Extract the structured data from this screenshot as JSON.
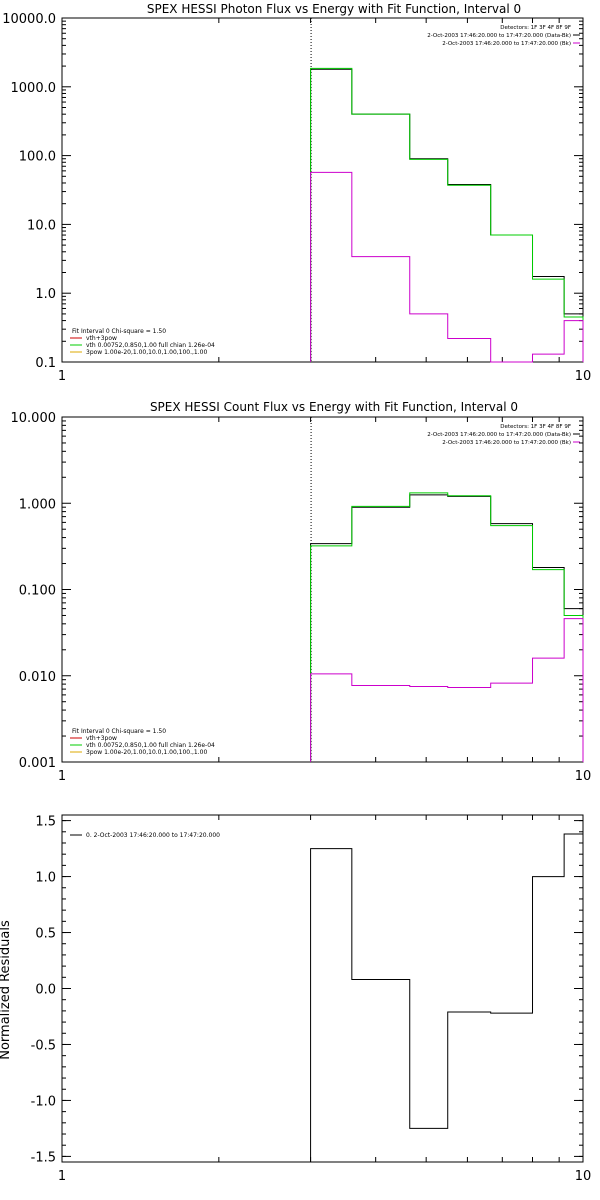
{
  "chart_data": [
    {
      "type": "line",
      "title": "SPEX HESSI Photon Flux vs Energy with Fit Function, Interval 0",
      "xlabel": "",
      "ylabel": "",
      "x_scale": "log",
      "y_scale": "log",
      "xlim": [
        1,
        10
      ],
      "ylim": [
        0.1,
        10000
      ],
      "x_ticks": [
        {
          "value": 1,
          "label": "1"
        },
        {
          "value": 10,
          "label": "10"
        }
      ],
      "y_ticks": [
        {
          "value": 0.1,
          "label": "0.1"
        },
        {
          "value": 1,
          "label": "1.0"
        },
        {
          "value": 10,
          "label": "10.0"
        },
        {
          "value": 100,
          "label": "100.0"
        },
        {
          "value": 1000,
          "label": "1000.0"
        },
        {
          "value": 10000,
          "label": "10000.0"
        }
      ],
      "vline_x": 3,
      "edges": [
        3,
        3.6,
        4.65,
        5.5,
        6.65,
        8.0,
        9.2,
        10.0
      ],
      "series": [
        {
          "color": "#000000",
          "values": [
            1800,
            400,
            90,
            38,
            7,
            1.75,
            0.5
          ]
        },
        {
          "color": "#00cc00",
          "values": [
            1850,
            400,
            88,
            37,
            7,
            1.6,
            0.45
          ]
        },
        {
          "color": "#cc00cc",
          "values": [
            57,
            3.4,
            0.5,
            0.22,
            0.09,
            0.13,
            0.4
          ]
        }
      ],
      "legend_right": [
        {
          "text": "Detectors: 1F 3F 4F 8F 9F",
          "color": ""
        },
        {
          "text": "2-Oct-2003 17:46:20.000 to 17:47:20.000 (Data-Bk)",
          "color": "#000000"
        },
        {
          "text": "2-Oct-2003 17:46:20.000 to 17:47:20.000 (Bk)",
          "color": "#cc00cc"
        }
      ],
      "legend_left": [
        {
          "text": "Fit Interval 0   Chi-square = 1.50",
          "color": ""
        },
        {
          "text": "vth+3pow",
          "color": "#cc0000"
        },
        {
          "text": "vth 0.00752,0.850,1.00   full chian 1.26e-04",
          "color": "#00cc00"
        },
        {
          "text": "3pow 1.00e-20,1.00,10.0,1.00,100.,1.00",
          "color": "#ddaa00"
        }
      ]
    },
    {
      "type": "line",
      "title": "SPEX HESSI Count Flux vs Energy with Fit Function, Interval 0",
      "xlabel": "",
      "ylabel": "",
      "x_scale": "log",
      "y_scale": "log",
      "xlim": [
        1,
        10
      ],
      "ylim": [
        0.001,
        10
      ],
      "x_ticks": [
        {
          "value": 1,
          "label": "1"
        },
        {
          "value": 10,
          "label": "10"
        }
      ],
      "y_ticks": [
        {
          "value": 0.001,
          "label": "0.001"
        },
        {
          "value": 0.01,
          "label": "0.010"
        },
        {
          "value": 0.1,
          "label": "0.100"
        },
        {
          "value": 1,
          "label": "1.000"
        },
        {
          "value": 10,
          "label": "10.000"
        }
      ],
      "vline_x": 3,
      "edges": [
        3,
        3.6,
        4.65,
        5.5,
        6.65,
        8.0,
        9.2,
        10.0
      ],
      "series": [
        {
          "color": "#000000",
          "values": [
            0.34,
            0.9,
            1.25,
            1.2,
            0.58,
            0.18,
            0.06
          ]
        },
        {
          "color": "#00cc00",
          "values": [
            0.32,
            0.92,
            1.32,
            1.22,
            0.55,
            0.17,
            0.05
          ]
        },
        {
          "color": "#cc00cc",
          "values": [
            0.0105,
            0.0077,
            0.0075,
            0.0073,
            0.0082,
            0.016,
            0.046
          ]
        }
      ],
      "legend_right": [
        {
          "text": "Detectors: 1F 3F 4F 8F 9F",
          "color": ""
        },
        {
          "text": "2-Oct-2003 17:46:20.000 to 17:47:20.000 (Data-Bk)",
          "color": "#000000"
        },
        {
          "text": "2-Oct-2003 17:46:20.000 to 17:47:20.000 (Bk)",
          "color": "#cc00cc"
        }
      ],
      "legend_left": [
        {
          "text": "Fit Interval 0   Chi-square = 1.50",
          "color": ""
        },
        {
          "text": "vth+3pow",
          "color": "#cc0000"
        },
        {
          "text": "vth 0.00752,0.850,1.00   full chian 1.26e-04",
          "color": "#00cc00"
        },
        {
          "text": "3pow 1.00e-20,1.00,10.0,1.00,100.,1.00",
          "color": "#ddaa00"
        }
      ]
    },
    {
      "type": "line",
      "title": "",
      "xlabel": "",
      "ylabel": "Normalized Residuals",
      "x_scale": "log",
      "y_scale": "linear",
      "xlim": [
        1,
        10
      ],
      "ylim": [
        -1.55,
        1.55
      ],
      "x_ticks": [
        {
          "value": 1,
          "label": "1"
        },
        {
          "value": 10,
          "label": "10"
        }
      ],
      "y_ticks": [
        {
          "value": -1.5,
          "label": "-1.5"
        },
        {
          "value": -1.0,
          "label": "-1.0"
        },
        {
          "value": -0.5,
          "label": "-0.5"
        },
        {
          "value": 0.0,
          "label": "0.0"
        },
        {
          "value": 0.5,
          "label": "0.5"
        },
        {
          "value": 1.0,
          "label": "1.0"
        },
        {
          "value": 1.5,
          "label": "1.5"
        }
      ],
      "edges": [
        3,
        3.6,
        4.65,
        5.5,
        6.65,
        8.0,
        9.2,
        10.0
      ],
      "series": [
        {
          "color": "#000000",
          "values": [
            1.25,
            0.08,
            -1.25,
            -0.21,
            -0.22,
            1.0,
            1.38
          ]
        }
      ],
      "legend_right": [],
      "legend_left": [
        {
          "text": "0.  2-Oct-2003 17:46:20.000 to 17:47:20.000",
          "color": "#000000"
        }
      ]
    }
  ]
}
